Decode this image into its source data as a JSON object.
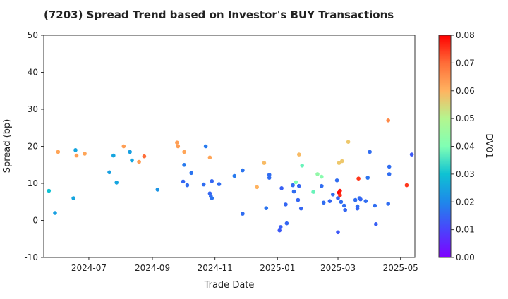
{
  "chart_data": {
    "type": "scatter",
    "title": "(7203)   Spread Trend based on Investor's BUY Transactions",
    "xlabel": "Trade Date",
    "ylabel": "Spread (bp)",
    "colorbar_label": "DV01",
    "xlim": [
      "2024-05-18",
      "2025-05-15"
    ],
    "ylim": [
      -10,
      50
    ],
    "yticks": [
      -10,
      0,
      10,
      20,
      30,
      40,
      50
    ],
    "xticks": [
      {
        "date": "2024-07-01",
        "label": "2024-07"
      },
      {
        "date": "2024-09-01",
        "label": "2024-09"
      },
      {
        "date": "2024-11-01",
        "label": "2024-11"
      },
      {
        "date": "2025-01-01",
        "label": "2025-01"
      },
      {
        "date": "2025-03-01",
        "label": "2025-03"
      },
      {
        "date": "2025-05-01",
        "label": "2025-05"
      }
    ],
    "color_range": [
      0,
      0.08
    ],
    "colorbar_ticks": [
      "0.00",
      "0.01",
      "0.02",
      "0.03",
      "0.04",
      "0.05",
      "0.06",
      "0.07",
      "0.08"
    ],
    "grid": false,
    "colormap": "jet",
    "points": [
      {
        "x": "2024-05-23",
        "y": 8.0,
        "dv01": 0.03
      },
      {
        "x": "2024-05-29",
        "y": 2.0,
        "dv01": 0.024
      },
      {
        "x": "2024-06-01",
        "y": 18.5,
        "dv01": 0.062
      },
      {
        "x": "2024-06-16",
        "y": 6.0,
        "dv01": 0.025
      },
      {
        "x": "2024-06-18",
        "y": 19.0,
        "dv01": 0.025
      },
      {
        "x": "2024-06-19",
        "y": 17.5,
        "dv01": 0.063
      },
      {
        "x": "2024-06-27",
        "y": 18.0,
        "dv01": 0.062
      },
      {
        "x": "2024-07-21",
        "y": 13.0,
        "dv01": 0.024
      },
      {
        "x": "2024-07-25",
        "y": 17.5,
        "dv01": 0.025
      },
      {
        "x": "2024-07-28",
        "y": 10.2,
        "dv01": 0.025
      },
      {
        "x": "2024-08-04",
        "y": 20.0,
        "dv01": 0.063
      },
      {
        "x": "2024-08-10",
        "y": 18.5,
        "dv01": 0.024
      },
      {
        "x": "2024-08-12",
        "y": 16.2,
        "dv01": 0.025
      },
      {
        "x": "2024-08-19",
        "y": 15.8,
        "dv01": 0.063
      },
      {
        "x": "2024-08-24",
        "y": 17.3,
        "dv01": 0.07
      },
      {
        "x": "2024-09-06",
        "y": 8.3,
        "dv01": 0.022
      },
      {
        "x": "2024-09-25",
        "y": 21.0,
        "dv01": 0.063
      },
      {
        "x": "2024-09-26",
        "y": 20.0,
        "dv01": 0.063
      },
      {
        "x": "2024-10-01",
        "y": 10.5,
        "dv01": 0.015
      },
      {
        "x": "2024-10-02",
        "y": 18.5,
        "dv01": 0.062
      },
      {
        "x": "2024-10-02",
        "y": 15.0,
        "dv01": 0.018
      },
      {
        "x": "2024-10-05",
        "y": 9.5,
        "dv01": 0.016
      },
      {
        "x": "2024-10-09",
        "y": 12.8,
        "dv01": 0.017
      },
      {
        "x": "2024-10-21",
        "y": 9.7,
        "dv01": 0.016
      },
      {
        "x": "2024-10-23",
        "y": 20.0,
        "dv01": 0.018
      },
      {
        "x": "2024-10-27",
        "y": 17.0,
        "dv01": 0.062
      },
      {
        "x": "2024-10-27",
        "y": 7.3,
        "dv01": 0.015
      },
      {
        "x": "2024-10-28",
        "y": 6.5,
        "dv01": 0.016
      },
      {
        "x": "2024-10-29",
        "y": 10.6,
        "dv01": 0.015
      },
      {
        "x": "2024-10-29",
        "y": 6.0,
        "dv01": 0.017
      },
      {
        "x": "2024-11-05",
        "y": 9.8,
        "dv01": 0.016
      },
      {
        "x": "2024-11-20",
        "y": 12.0,
        "dv01": 0.018
      },
      {
        "x": "2024-11-28",
        "y": 13.5,
        "dv01": 0.017
      },
      {
        "x": "2024-11-28",
        "y": 1.8,
        "dv01": 0.016
      },
      {
        "x": "2024-12-12",
        "y": 9.0,
        "dv01": 0.06
      },
      {
        "x": "2024-12-19",
        "y": 15.5,
        "dv01": 0.058
      },
      {
        "x": "2024-12-21",
        "y": 3.3,
        "dv01": 0.017
      },
      {
        "x": "2024-12-24",
        "y": 12.3,
        "dv01": 0.016
      },
      {
        "x": "2024-12-24",
        "y": 11.5,
        "dv01": 0.016
      },
      {
        "x": "2025-01-03",
        "y": -2.7,
        "dv01": 0.013
      },
      {
        "x": "2025-01-04",
        "y": -1.8,
        "dv01": 0.014
      },
      {
        "x": "2025-01-05",
        "y": 8.7,
        "dv01": 0.014
      },
      {
        "x": "2025-01-09",
        "y": 4.3,
        "dv01": 0.015
      },
      {
        "x": "2025-01-10",
        "y": -0.8,
        "dv01": 0.015
      },
      {
        "x": "2025-01-16",
        "y": 9.5,
        "dv01": 0.016
      },
      {
        "x": "2025-01-17",
        "y": 7.8,
        "dv01": 0.016
      },
      {
        "x": "2025-01-19",
        "y": 10.3,
        "dv01": 0.04
      },
      {
        "x": "2025-01-21",
        "y": 5.5,
        "dv01": 0.015
      },
      {
        "x": "2025-01-22",
        "y": 9.3,
        "dv01": 0.015
      },
      {
        "x": "2025-01-22",
        "y": 17.8,
        "dv01": 0.058
      },
      {
        "x": "2025-01-24",
        "y": 3.2,
        "dv01": 0.015
      },
      {
        "x": "2025-01-25",
        "y": 14.8,
        "dv01": 0.038
      },
      {
        "x": "2025-02-05",
        "y": 7.7,
        "dv01": 0.038
      },
      {
        "x": "2025-02-09",
        "y": 12.5,
        "dv01": 0.042
      },
      {
        "x": "2025-02-13",
        "y": 11.8,
        "dv01": 0.041
      },
      {
        "x": "2025-02-13",
        "y": 9.3,
        "dv01": 0.016
      },
      {
        "x": "2025-02-15",
        "y": 4.8,
        "dv01": 0.016
      },
      {
        "x": "2025-02-21",
        "y": 5.2,
        "dv01": 0.015
      },
      {
        "x": "2025-02-24",
        "y": 7.0,
        "dv01": 0.016
      },
      {
        "x": "2025-02-28",
        "y": 10.8,
        "dv01": 0.016
      },
      {
        "x": "2025-03-01",
        "y": 6.0,
        "dv01": 0.015
      },
      {
        "x": "2025-03-01",
        "y": -3.2,
        "dv01": 0.013
      },
      {
        "x": "2025-03-02",
        "y": 15.5,
        "dv01": 0.055
      },
      {
        "x": "2025-03-02",
        "y": 7.5,
        "dv01": 0.08
      },
      {
        "x": "2025-03-03",
        "y": 8.0,
        "dv01": 0.078
      },
      {
        "x": "2025-03-03",
        "y": 6.8,
        "dv01": 0.076
      },
      {
        "x": "2025-03-04",
        "y": 5.0,
        "dv01": 0.016
      },
      {
        "x": "2025-03-05",
        "y": 16.0,
        "dv01": 0.055
      },
      {
        "x": "2025-03-07",
        "y": 4.0,
        "dv01": 0.016
      },
      {
        "x": "2025-03-08",
        "y": 2.8,
        "dv01": 0.015
      },
      {
        "x": "2025-03-11",
        "y": 21.2,
        "dv01": 0.055
      },
      {
        "x": "2025-03-18",
        "y": 5.5,
        "dv01": 0.016
      },
      {
        "x": "2025-03-20",
        "y": 3.8,
        "dv01": 0.016
      },
      {
        "x": "2025-03-20",
        "y": 3.2,
        "dv01": 0.015
      },
      {
        "x": "2025-03-21",
        "y": 11.3,
        "dv01": 0.075
      },
      {
        "x": "2025-03-22",
        "y": 6.0,
        "dv01": 0.016
      },
      {
        "x": "2025-03-23",
        "y": 5.7,
        "dv01": 0.015
      },
      {
        "x": "2025-03-28",
        "y": 5.2,
        "dv01": 0.016
      },
      {
        "x": "2025-03-30",
        "y": 11.5,
        "dv01": 0.017
      },
      {
        "x": "2025-04-01",
        "y": 18.5,
        "dv01": 0.016
      },
      {
        "x": "2025-04-06",
        "y": 4.0,
        "dv01": 0.016
      },
      {
        "x": "2025-04-07",
        "y": -1.0,
        "dv01": 0.014
      },
      {
        "x": "2025-04-19",
        "y": 27.0,
        "dv01": 0.066
      },
      {
        "x": "2025-04-19",
        "y": 4.5,
        "dv01": 0.016
      },
      {
        "x": "2025-04-20",
        "y": 14.5,
        "dv01": 0.016
      },
      {
        "x": "2025-04-20",
        "y": 12.5,
        "dv01": 0.016
      },
      {
        "x": "2025-05-07",
        "y": 9.5,
        "dv01": 0.075
      },
      {
        "x": "2025-05-12",
        "y": 17.8,
        "dv01": 0.013
      }
    ]
  }
}
